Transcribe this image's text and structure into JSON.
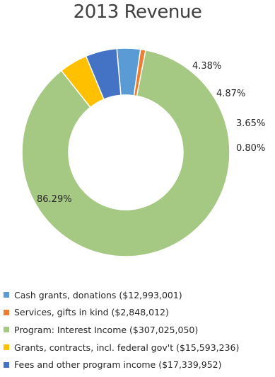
{
  "chart_data": {
    "type": "pie",
    "title": "2013 Revenue",
    "donut": true,
    "start_angle_deg": 95,
    "direction": "counterclockwise",
    "slices": [
      {
        "label": "Cash grants, donations ($12,993,001)",
        "value": 12993001,
        "pct_label": "3.65%",
        "color": "#5b9bd5"
      },
      {
        "label": "Services, gifts in kind ($2,848,012)",
        "value": 2848012,
        "pct_label": "0.80%",
        "color": "#ed7d31"
      },
      {
        "label": "Program: Interest Income ($307,025,050)",
        "value": 307025050,
        "pct_label": "86.29%",
        "color": "#a5c882"
      },
      {
        "label": "Grants, contracts, incl. federal gov't ($15,593,236)",
        "value": 15593236,
        "pct_label": "4.38%",
        "color": "#ffc000"
      },
      {
        "label": "Fees and other program income ($17,339,952)",
        "value": 17339952,
        "pct_label": "4.87%",
        "color": "#4472c4"
      }
    ],
    "legend_position": "bottom"
  }
}
